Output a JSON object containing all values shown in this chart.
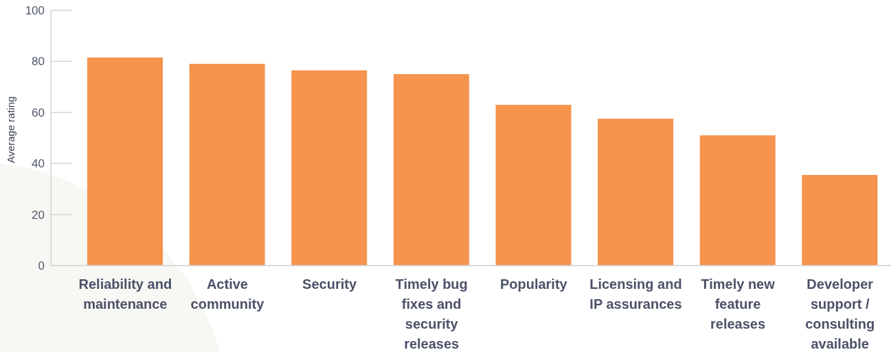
{
  "chart_data": {
    "type": "bar",
    "ylabel": "Average rating",
    "categories": [
      "Reliability and maintenance",
      "Active community",
      "Security",
      "Timely bug fixes and security releases",
      "Popularity",
      "Licensing and IP assurances",
      "Timely new feature releases",
      "Developer support / consulting available"
    ],
    "values": [
      81.5,
      79,
      76.5,
      75,
      63,
      57.5,
      51,
      35.5
    ],
    "color": "#f6934d",
    "ylim": [
      0,
      100
    ],
    "yticks": [
      0,
      20,
      40,
      60,
      80,
      100
    ]
  }
}
